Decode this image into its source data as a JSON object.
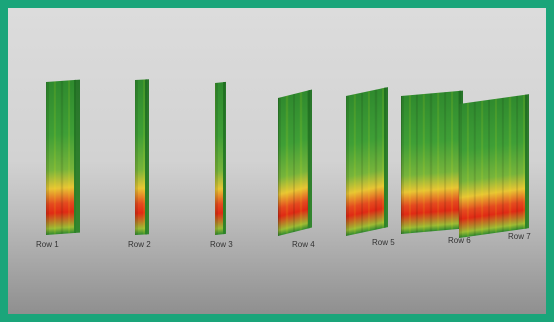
{
  "colors": {
    "border": "#1aa57a",
    "background_top": "#dcdcdc",
    "background_bottom": "#8f8f8f"
  },
  "rows": [
    {
      "label": "Row 1"
    },
    {
      "label": "Row 2"
    },
    {
      "label": "Row 3"
    },
    {
      "label": "Row 4"
    },
    {
      "label": "Row 5"
    },
    {
      "label": "Row 6"
    },
    {
      "label": "Row 7"
    }
  ]
}
